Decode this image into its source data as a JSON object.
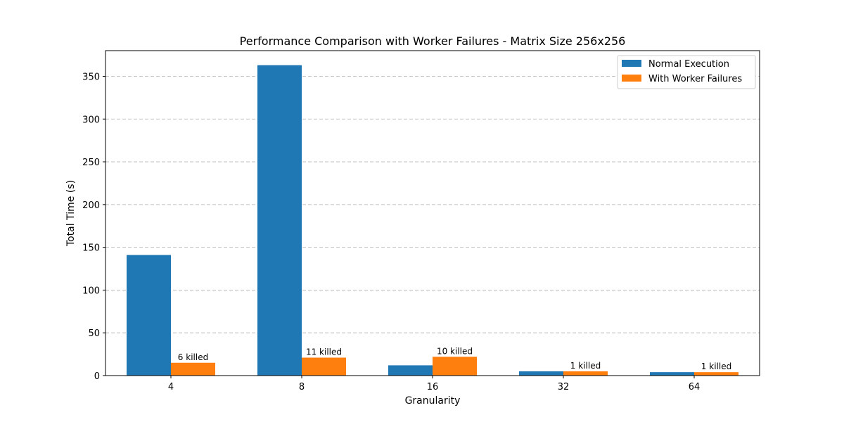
{
  "chart_data": {
    "type": "bar",
    "title": "Performance Comparison with Worker Failures - Matrix Size 256x256",
    "xlabel": "Granularity",
    "ylabel": "Total Time (s)",
    "categories": [
      "4",
      "8",
      "16",
      "32",
      "64"
    ],
    "ylim": [
      0,
      380
    ],
    "yticks": [
      0,
      50,
      100,
      150,
      200,
      250,
      300,
      350
    ],
    "grid": true,
    "legend_position": "top-right",
    "series": [
      {
        "name": "Normal Execution",
        "color": "#1f77b4",
        "values": [
          141,
          363,
          12,
          5,
          4
        ]
      },
      {
        "name": "With Worker Failures",
        "color": "#ff7f0e",
        "values": [
          15,
          21,
          22,
          5,
          4
        ]
      }
    ],
    "annotations": [
      "6 killed",
      "11 killed",
      "10 killed",
      "1 killed",
      "1 killed"
    ]
  }
}
